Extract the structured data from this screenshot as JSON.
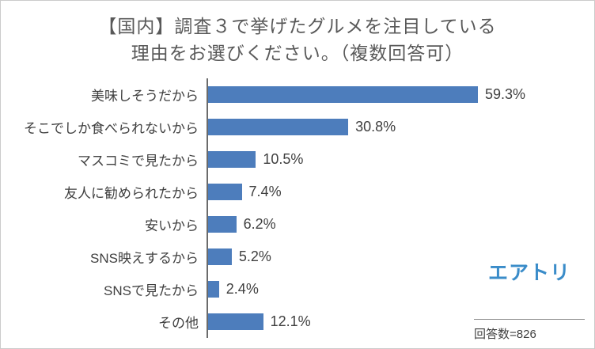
{
  "title": {
    "line1": "【国内】調査３で挙げたグルメを注目している",
    "line2": "理由をお選びください。（複数回答可）"
  },
  "chart_data": {
    "type": "bar",
    "orientation": "horizontal",
    "title": "【国内】調査３で挙げたグルメを注目している理由をお選びください。（複数回答可）",
    "categories": [
      "美味しそうだから",
      "そこでしか食べられないから",
      "マスコミで見たから",
      "友人に勧められたから",
      "安いから",
      "SNS映えするから",
      "SNSで見たから",
      "その他"
    ],
    "values": [
      59.3,
      30.8,
      10.5,
      7.4,
      6.2,
      5.2,
      2.4,
      12.1
    ],
    "value_labels": [
      "59.3%",
      "30.8%",
      "10.5%",
      "7.4%",
      "6.2%",
      "5.2%",
      "2.4%",
      "12.1%"
    ],
    "unit": "%",
    "xlim": [
      0,
      65
    ],
    "grid": false,
    "legend": "none",
    "bar_color": "#4d7dbc"
  },
  "footer": {
    "logo_text": "エアトリ",
    "respondents_label": "回答数=826"
  },
  "colors": {
    "bar": "#4d7dbc",
    "title_text": "#595959",
    "label_text": "#404040",
    "logo_blue": "#3a8cc9",
    "axis_line": "#6b6b6b",
    "frame_border": "#cbcbcb"
  }
}
